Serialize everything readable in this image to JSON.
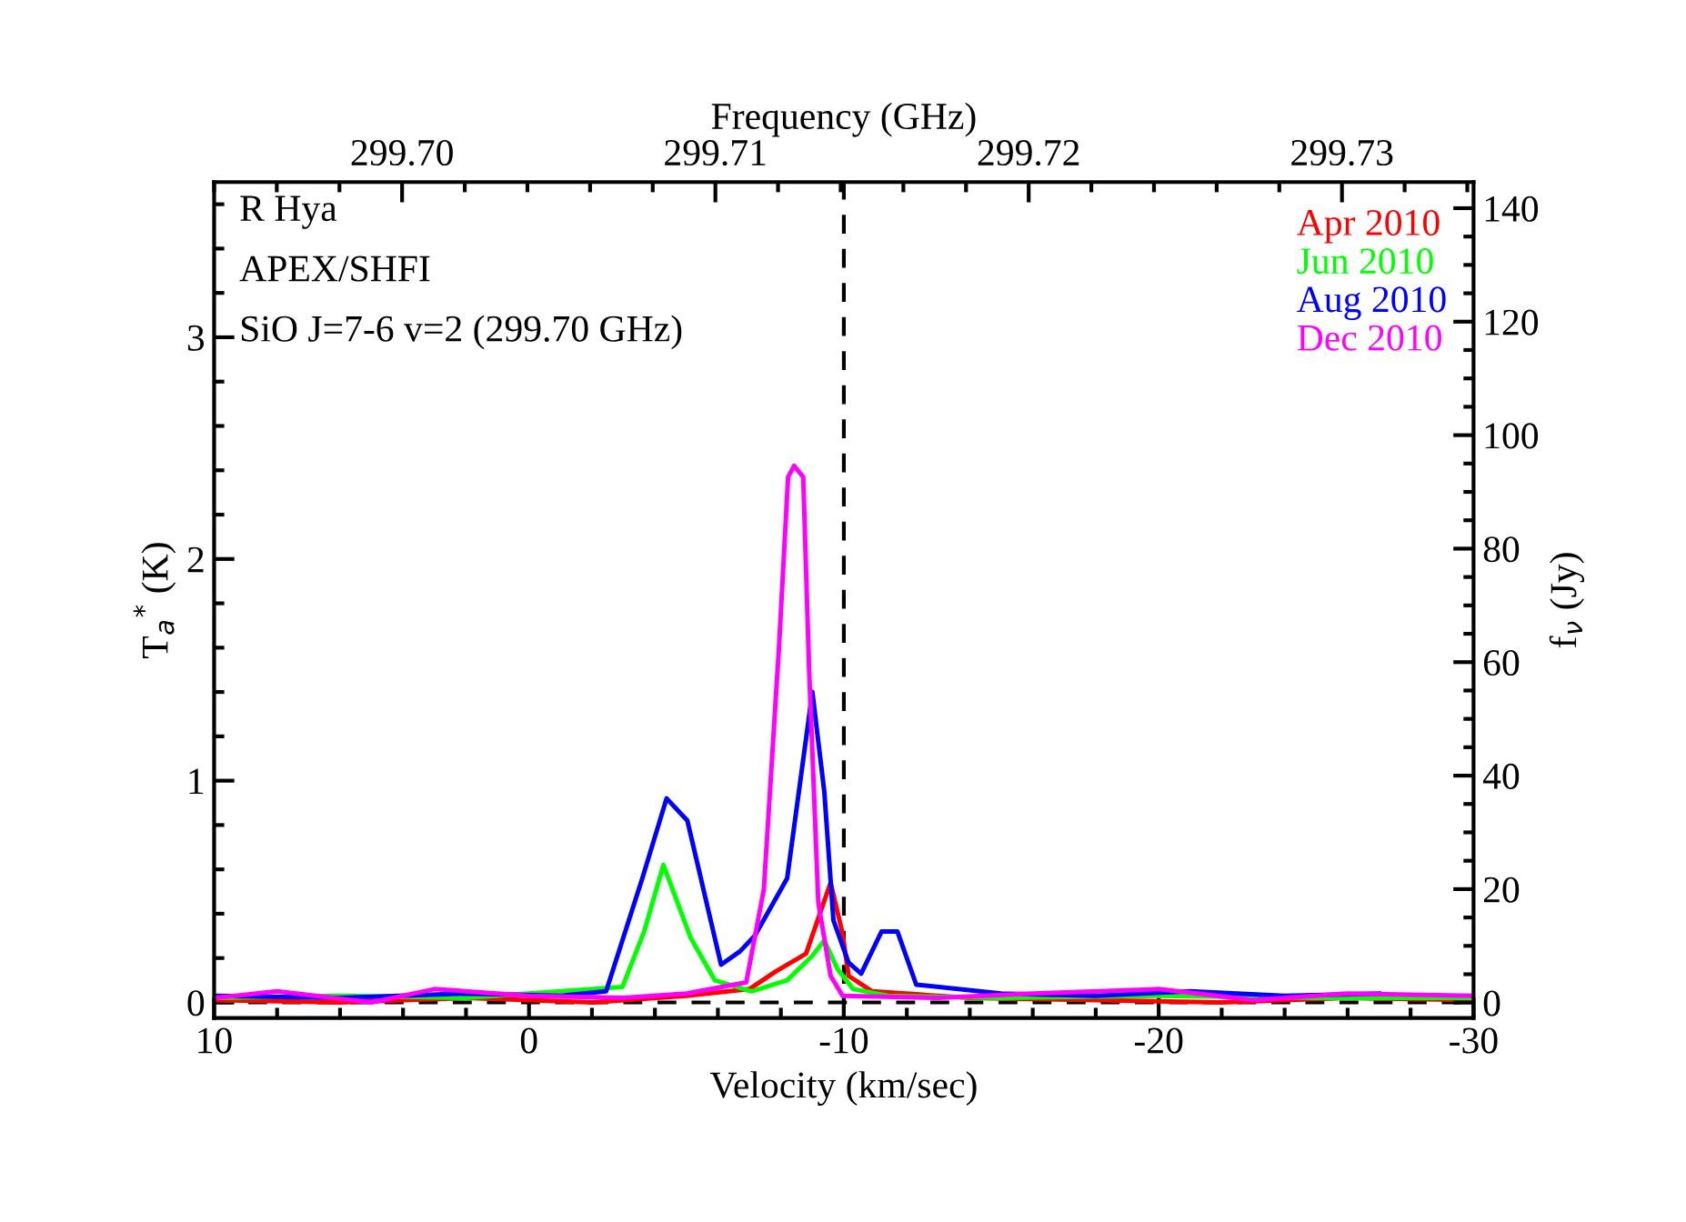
{
  "chart_data": {
    "type": "line",
    "xlabel": "Velocity (km/sec)",
    "ylabel": "T$_{a}$$^{*}$ (K)",
    "y2label": "f$_{ν}$ (Jy)",
    "x2label": "Frequency (GHz)",
    "annotations": [
      "R Hya",
      "APEX/SHFI",
      "SiO J=7-6 v=2 (299.70 GHz)"
    ],
    "xlim": [
      10,
      -30
    ],
    "xticks": [
      10,
      0,
      -10,
      -20,
      -30
    ],
    "ylim": [
      -0.07,
      3.7
    ],
    "yticks": [
      0,
      1,
      2,
      3
    ],
    "y2lim": [
      -2.7,
      144.6
    ],
    "y2ticks": [
      0,
      20,
      40,
      60,
      80,
      100,
      120,
      140
    ],
    "x2lim": [
      299.694,
      299.7342
    ],
    "x2ticks": [
      {
        "value": 299.7,
        "label": "299.70"
      },
      299.71,
      299.72,
      299.73
    ],
    "ref_lines": [
      {
        "axis": "x",
        "value": -10,
        "line_style": "dashed",
        "color": "#000000"
      },
      {
        "axis": "y",
        "value": 0,
        "line_style": "dashed",
        "color": "#000000"
      }
    ],
    "legend": "top right",
    "grid": false,
    "series": [
      {
        "name": "Apr 2010",
        "color": "#ff0000",
        "x": [
          10,
          6,
          2,
          -2,
          -5,
          -7.0,
          -7.84,
          -8.8,
          -9.58,
          -9.96,
          -10.15,
          -10.9,
          -14,
          -18,
          -22,
          -26,
          -30
        ],
        "values": [
          0.01,
          0.0,
          0.02,
          0.0,
          0.03,
          0.06,
          0.14,
          0.22,
          0.54,
          0.31,
          0.12,
          0.05,
          0.02,
          0.01,
          0.0,
          0.02,
          0.01
        ]
      },
      {
        "name": "Jun 2010",
        "color": "#00ff00",
        "x": [
          10,
          6,
          2,
          -2.97,
          -3.66,
          -4.27,
          -5.14,
          -5.9,
          -7.07,
          -8.2,
          -9.0,
          -9.38,
          -9.8,
          -10.3,
          -11.4,
          -15,
          -20,
          -25,
          -30
        ],
        "values": [
          0.02,
          0.03,
          0.02,
          0.07,
          0.32,
          0.62,
          0.29,
          0.1,
          0.05,
          0.1,
          0.21,
          0.28,
          0.15,
          0.06,
          0.03,
          0.02,
          0.03,
          0.02,
          0.02
        ]
      },
      {
        "name": "Aug 2010",
        "color": "#0000ff",
        "x": [
          10,
          6,
          2,
          -1,
          -2.45,
          -3.6,
          -4.37,
          -5.03,
          -6.1,
          -6.7,
          -7.17,
          -8.2,
          -9.0,
          -9.38,
          -9.67,
          -10.15,
          -10.55,
          -11.2,
          -11.7,
          -12.3,
          -15,
          -18,
          -21,
          -24,
          -27
        ],
        "values": [
          0.03,
          0.02,
          0.04,
          0.03,
          0.05,
          0.56,
          0.92,
          0.82,
          0.17,
          0.23,
          0.3,
          0.56,
          1.4,
          0.95,
          0.37,
          0.18,
          0.13,
          0.32,
          0.32,
          0.08,
          0.04,
          0.03,
          0.05,
          0.03,
          0.04
        ]
      },
      {
        "name": "Dec 2010",
        "color": "#ff00ff",
        "x": [
          10,
          8,
          5,
          3,
          0,
          -3,
          -5,
          -6.9,
          -7.46,
          -7.94,
          -8.23,
          -8.42,
          -8.71,
          -8.9,
          -9.19,
          -9.58,
          -9.96,
          -13,
          -16,
          -20,
          -23,
          -26,
          -30
        ],
        "values": [
          0.02,
          0.05,
          0.0,
          0.06,
          0.03,
          0.02,
          0.04,
          0.09,
          0.51,
          1.6,
          2.37,
          2.42,
          2.37,
          1.49,
          0.45,
          0.12,
          0.03,
          0.02,
          0.04,
          0.06,
          0.01,
          0.04,
          0.03
        ]
      }
    ]
  }
}
